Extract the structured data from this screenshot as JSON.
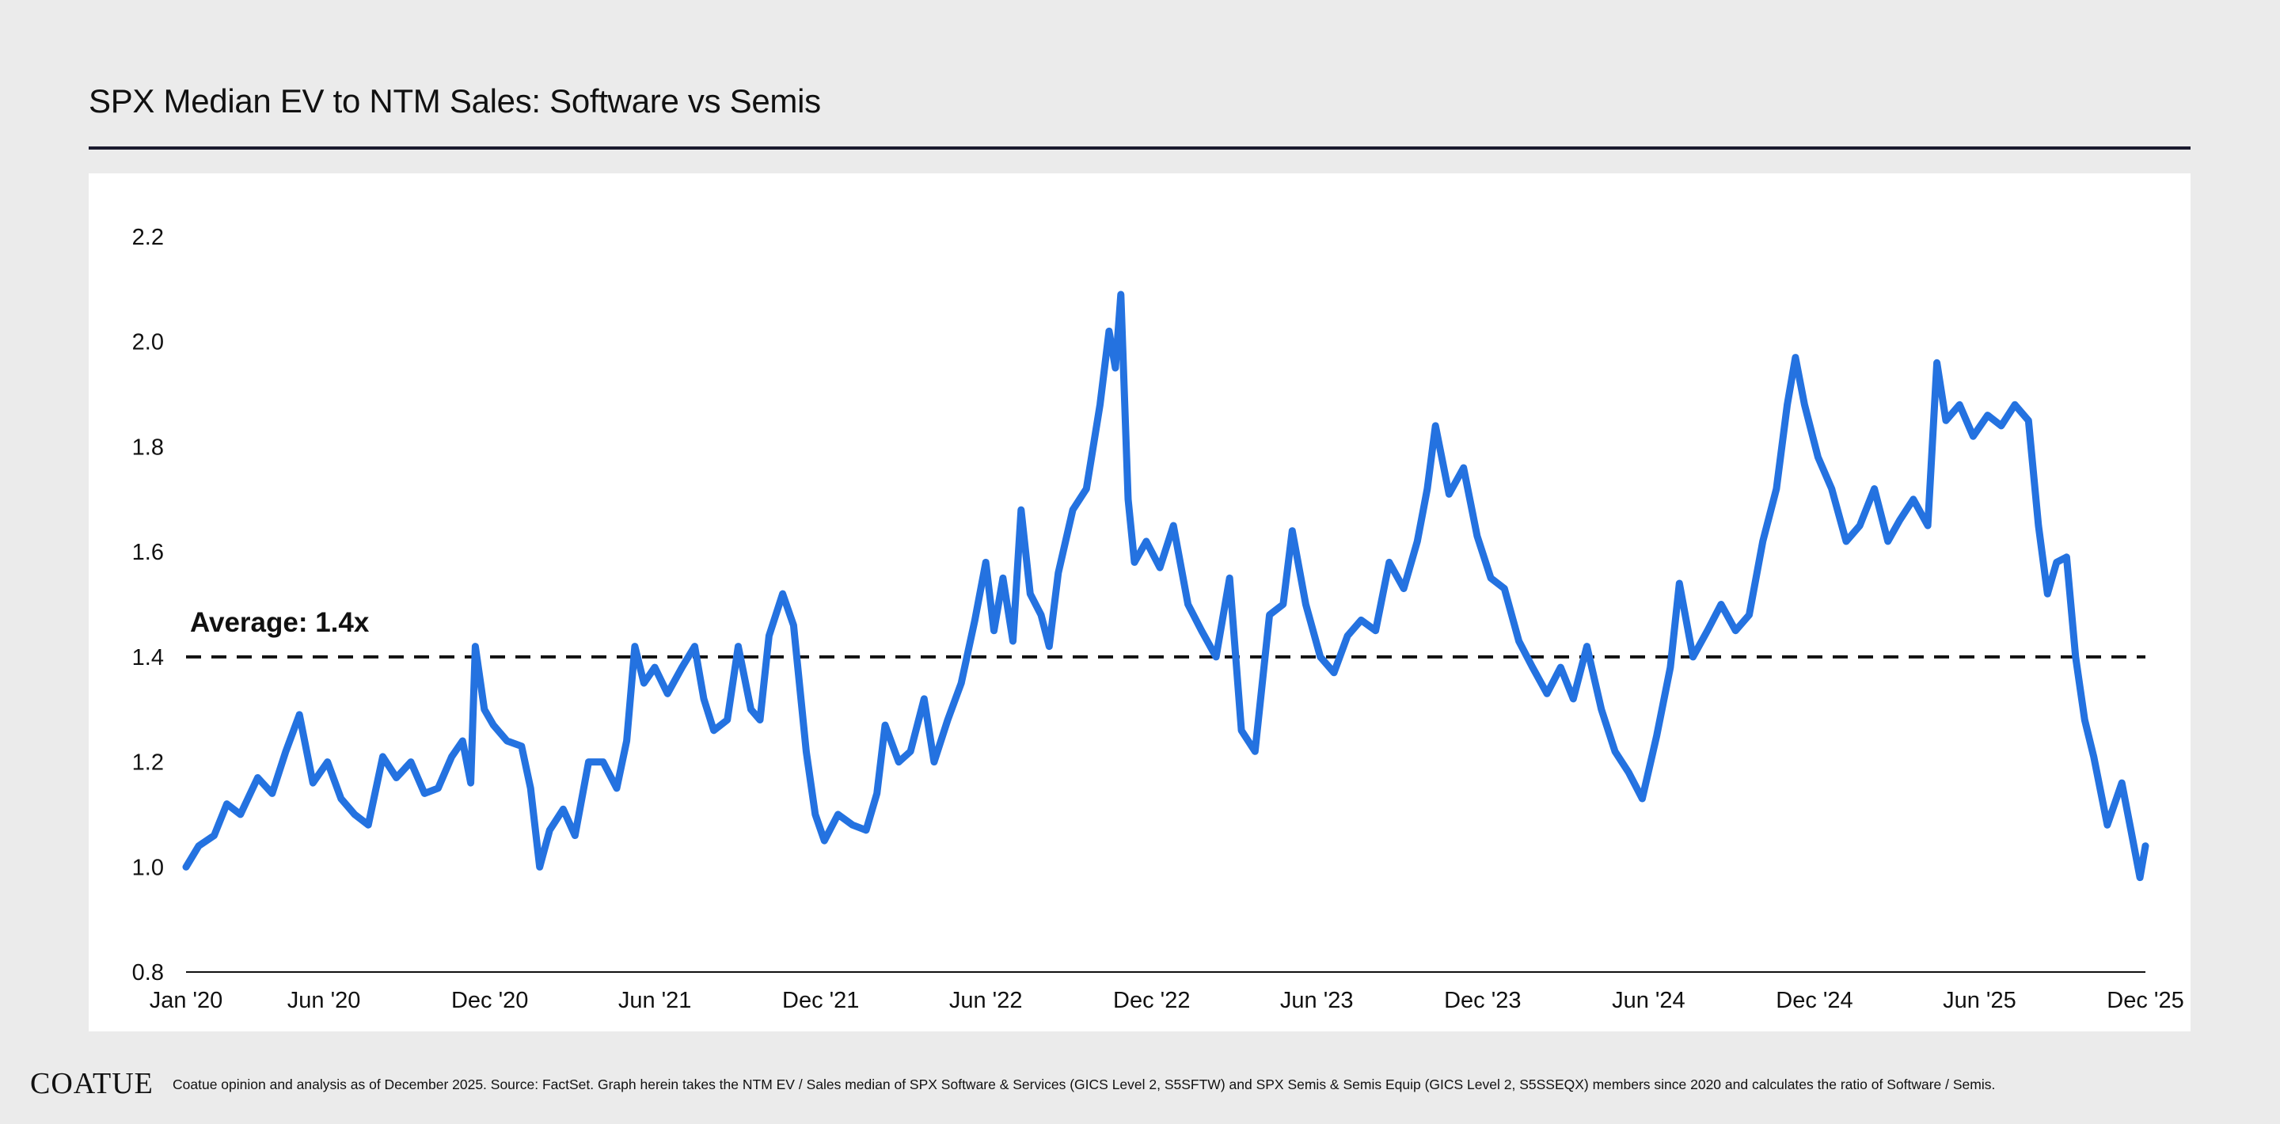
{
  "footer": {
    "logo": "COATUE",
    "note": "Coatue opinion and analysis as of December 2025. Source: FactSet. Graph herein takes the NTM EV / Sales median of SPX Software & Services (GICS Level 2, S5SFTW) and SPX Semis & Semis Equip (GICS Level 2, S5SSEQX) members since 2020 and calculates the ratio of Software / Semis."
  },
  "colors": {
    "background": "#ebebeb",
    "panel": "#ffffff",
    "series": "#2472e0",
    "average_line": "#111111",
    "title_rule": "#1a1a2e"
  },
  "chart_data": {
    "type": "line",
    "title": "SPX Median EV to NTM Sales: Software vs Semis",
    "xlabel": "",
    "ylabel": "",
    "ylim": [
      0.8,
      2.2
    ],
    "xlim": [
      "2020-01-01",
      "2025-12-01"
    ],
    "yticks": [
      "0.8",
      "1.0",
      "1.2",
      "1.4",
      "1.6",
      "1.8",
      "2.0",
      "2.2"
    ],
    "xticks": [
      {
        "date": "2020-01-01",
        "label": "Jan '20"
      },
      {
        "date": "2020-06-01",
        "label": "Jun '20"
      },
      {
        "date": "2020-12-01",
        "label": "Dec '20"
      },
      {
        "date": "2021-06-01",
        "label": "Jun '21"
      },
      {
        "date": "2021-12-01",
        "label": "Dec '21"
      },
      {
        "date": "2022-06-01",
        "label": "Jun '22"
      },
      {
        "date": "2022-12-01",
        "label": "Dec '22"
      },
      {
        "date": "2023-06-01",
        "label": "Jun '23"
      },
      {
        "date": "2023-12-01",
        "label": "Dec '23"
      },
      {
        "date": "2024-06-01",
        "label": "Jun '24"
      },
      {
        "date": "2024-12-01",
        "label": "Dec '24"
      },
      {
        "date": "2025-06-01",
        "label": "Jun '25"
      },
      {
        "date": "2025-12-01",
        "label": "Dec '25"
      }
    ],
    "average": {
      "value": 1.4,
      "label": "Average: 1.4x"
    },
    "grid": false,
    "legend": "none",
    "series": [
      {
        "points": [
          [
            "2020-01-01",
            1.0
          ],
          [
            "2020-01-15",
            1.04
          ],
          [
            "2020-02-01",
            1.06
          ],
          [
            "2020-02-15",
            1.12
          ],
          [
            "2020-03-01",
            1.1
          ],
          [
            "2020-03-20",
            1.17
          ],
          [
            "2020-04-05",
            1.14
          ],
          [
            "2020-04-20",
            1.22
          ],
          [
            "2020-05-05",
            1.29
          ],
          [
            "2020-05-20",
            1.16
          ],
          [
            "2020-06-05",
            1.2
          ],
          [
            "2020-06-20",
            1.13
          ],
          [
            "2020-07-05",
            1.1
          ],
          [
            "2020-07-20",
            1.08
          ],
          [
            "2020-08-05",
            1.21
          ],
          [
            "2020-08-20",
            1.17
          ],
          [
            "2020-09-05",
            1.2
          ],
          [
            "2020-09-20",
            1.14
          ],
          [
            "2020-10-05",
            1.15
          ],
          [
            "2020-10-20",
            1.21
          ],
          [
            "2020-11-01",
            1.24
          ],
          [
            "2020-11-10",
            1.16
          ],
          [
            "2020-11-15",
            1.42
          ],
          [
            "2020-11-25",
            1.3
          ],
          [
            "2020-12-05",
            1.27
          ],
          [
            "2020-12-20",
            1.24
          ],
          [
            "2021-01-05",
            1.23
          ],
          [
            "2021-01-15",
            1.15
          ],
          [
            "2021-01-25",
            1.0
          ],
          [
            "2021-02-05",
            1.07
          ],
          [
            "2021-02-20",
            1.11
          ],
          [
            "2021-03-05",
            1.06
          ],
          [
            "2021-03-20",
            1.2
          ],
          [
            "2021-04-05",
            1.2
          ],
          [
            "2021-04-20",
            1.15
          ],
          [
            "2021-05-01",
            1.24
          ],
          [
            "2021-05-10",
            1.42
          ],
          [
            "2021-05-20",
            1.35
          ],
          [
            "2021-06-01",
            1.38
          ],
          [
            "2021-06-15",
            1.33
          ],
          [
            "2021-07-01",
            1.38
          ],
          [
            "2021-07-15",
            1.42
          ],
          [
            "2021-07-25",
            1.32
          ],
          [
            "2021-08-05",
            1.26
          ],
          [
            "2021-08-20",
            1.28
          ],
          [
            "2021-09-01",
            1.42
          ],
          [
            "2021-09-15",
            1.3
          ],
          [
            "2021-09-25",
            1.28
          ],
          [
            "2021-10-05",
            1.44
          ],
          [
            "2021-10-20",
            1.52
          ],
          [
            "2021-11-01",
            1.46
          ],
          [
            "2021-11-15",
            1.22
          ],
          [
            "2021-11-25",
            1.1
          ],
          [
            "2021-12-05",
            1.05
          ],
          [
            "2021-12-20",
            1.1
          ],
          [
            "2022-01-05",
            1.08
          ],
          [
            "2022-01-20",
            1.07
          ],
          [
            "2022-02-01",
            1.14
          ],
          [
            "2022-02-10",
            1.27
          ],
          [
            "2022-02-25",
            1.2
          ],
          [
            "2022-03-10",
            1.22
          ],
          [
            "2022-03-25",
            1.32
          ],
          [
            "2022-04-05",
            1.2
          ],
          [
            "2022-04-20",
            1.28
          ],
          [
            "2022-05-05",
            1.35
          ],
          [
            "2022-05-20",
            1.47
          ],
          [
            "2022-06-01",
            1.58
          ],
          [
            "2022-06-10",
            1.45
          ],
          [
            "2022-06-20",
            1.55
          ],
          [
            "2022-07-01",
            1.43
          ],
          [
            "2022-07-10",
            1.68
          ],
          [
            "2022-07-20",
            1.52
          ],
          [
            "2022-08-01",
            1.48
          ],
          [
            "2022-08-10",
            1.42
          ],
          [
            "2022-08-20",
            1.56
          ],
          [
            "2022-09-05",
            1.68
          ],
          [
            "2022-09-20",
            1.72
          ],
          [
            "2022-10-05",
            1.88
          ],
          [
            "2022-10-15",
            2.02
          ],
          [
            "2022-10-22",
            1.95
          ],
          [
            "2022-10-28",
            2.09
          ],
          [
            "2022-11-05",
            1.7
          ],
          [
            "2022-11-12",
            1.58
          ],
          [
            "2022-11-25",
            1.62
          ],
          [
            "2022-12-10",
            1.57
          ],
          [
            "2022-12-25",
            1.65
          ],
          [
            "2023-01-10",
            1.5
          ],
          [
            "2023-01-25",
            1.45
          ],
          [
            "2023-02-10",
            1.4
          ],
          [
            "2023-02-25",
            1.55
          ],
          [
            "2023-03-10",
            1.26
          ],
          [
            "2023-03-25",
            1.22
          ],
          [
            "2023-04-10",
            1.48
          ],
          [
            "2023-04-25",
            1.5
          ],
          [
            "2023-05-05",
            1.64
          ],
          [
            "2023-05-20",
            1.5
          ],
          [
            "2023-06-05",
            1.4
          ],
          [
            "2023-06-20",
            1.37
          ],
          [
            "2023-07-05",
            1.44
          ],
          [
            "2023-07-20",
            1.47
          ],
          [
            "2023-08-05",
            1.45
          ],
          [
            "2023-08-20",
            1.58
          ],
          [
            "2023-09-05",
            1.53
          ],
          [
            "2023-09-20",
            1.62
          ],
          [
            "2023-10-01",
            1.72
          ],
          [
            "2023-10-10",
            1.84
          ],
          [
            "2023-10-25",
            1.71
          ],
          [
            "2023-11-10",
            1.76
          ],
          [
            "2023-11-25",
            1.63
          ],
          [
            "2023-12-10",
            1.55
          ],
          [
            "2023-12-25",
            1.53
          ],
          [
            "2024-01-10",
            1.43
          ],
          [
            "2024-01-25",
            1.38
          ],
          [
            "2024-02-10",
            1.33
          ],
          [
            "2024-02-25",
            1.38
          ],
          [
            "2024-03-10",
            1.32
          ],
          [
            "2024-03-25",
            1.42
          ],
          [
            "2024-04-10",
            1.3
          ],
          [
            "2024-04-25",
            1.22
          ],
          [
            "2024-05-10",
            1.18
          ],
          [
            "2024-05-25",
            1.13
          ],
          [
            "2024-06-10",
            1.25
          ],
          [
            "2024-06-25",
            1.38
          ],
          [
            "2024-07-05",
            1.54
          ],
          [
            "2024-07-20",
            1.4
          ],
          [
            "2024-08-05",
            1.45
          ],
          [
            "2024-08-20",
            1.5
          ],
          [
            "2024-09-05",
            1.45
          ],
          [
            "2024-09-20",
            1.48
          ],
          [
            "2024-10-05",
            1.62
          ],
          [
            "2024-10-20",
            1.72
          ],
          [
            "2024-11-01",
            1.88
          ],
          [
            "2024-11-10",
            1.97
          ],
          [
            "2024-11-20",
            1.88
          ],
          [
            "2024-12-05",
            1.78
          ],
          [
            "2024-12-20",
            1.72
          ],
          [
            "2025-01-05",
            1.62
          ],
          [
            "2025-01-20",
            1.65
          ],
          [
            "2025-02-05",
            1.72
          ],
          [
            "2025-02-20",
            1.62
          ],
          [
            "2025-03-05",
            1.66
          ],
          [
            "2025-03-20",
            1.7
          ],
          [
            "2025-04-05",
            1.65
          ],
          [
            "2025-04-15",
            1.96
          ],
          [
            "2025-04-25",
            1.85
          ],
          [
            "2025-05-10",
            1.88
          ],
          [
            "2025-05-25",
            1.82
          ],
          [
            "2025-06-10",
            1.86
          ],
          [
            "2025-06-25",
            1.84
          ],
          [
            "2025-07-10",
            1.88
          ],
          [
            "2025-07-25",
            1.85
          ],
          [
            "2025-08-05",
            1.65
          ],
          [
            "2025-08-15",
            1.52
          ],
          [
            "2025-08-25",
            1.58
          ],
          [
            "2025-09-05",
            1.59
          ],
          [
            "2025-09-15",
            1.4
          ],
          [
            "2025-09-25",
            1.28
          ],
          [
            "2025-10-05",
            1.21
          ],
          [
            "2025-10-20",
            1.08
          ],
          [
            "2025-11-05",
            1.16
          ],
          [
            "2025-11-15",
            1.07
          ],
          [
            "2025-11-25",
            0.98
          ],
          [
            "2025-12-01",
            1.04
          ]
        ]
      }
    ]
  }
}
